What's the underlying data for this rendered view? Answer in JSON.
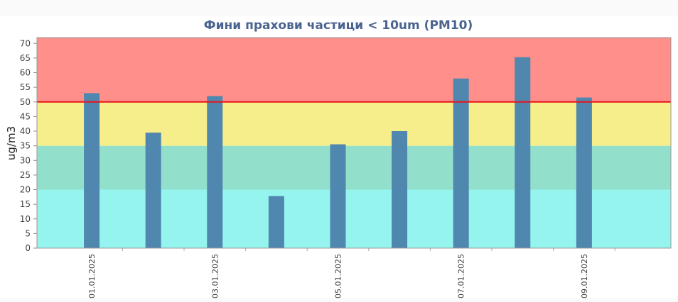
{
  "chart_data": {
    "type": "bar",
    "title": "Фини прахови частици < 10um (PM10)",
    "y_label": "ug/m3",
    "categories": [
      "01.01.2025",
      null,
      "03.01.2025",
      null,
      "05.01.2025",
      null,
      "07.01.2025",
      null,
      "09.01.2025"
    ],
    "values": [
      53,
      39.5,
      52,
      17.8,
      35.5,
      40,
      58,
      65.3,
      51.5
    ],
    "color": "#5087ae",
    "ylim": [
      0,
      72
    ],
    "yticks": [
      0,
      5,
      10,
      15,
      20,
      25,
      30,
      35,
      40,
      45,
      50,
      55,
      60,
      65,
      70
    ],
    "bands": [
      {
        "from": 0,
        "color": "#96f4ef"
      },
      {
        "from": 20,
        "color": "#92e0cc"
      },
      {
        "from": 35,
        "color": "#f5ee8a"
      },
      {
        "from": 50,
        "color": "#ff8f8a"
      }
    ],
    "threshold": {
      "value": 50,
      "color": "#e8121a"
    }
  }
}
